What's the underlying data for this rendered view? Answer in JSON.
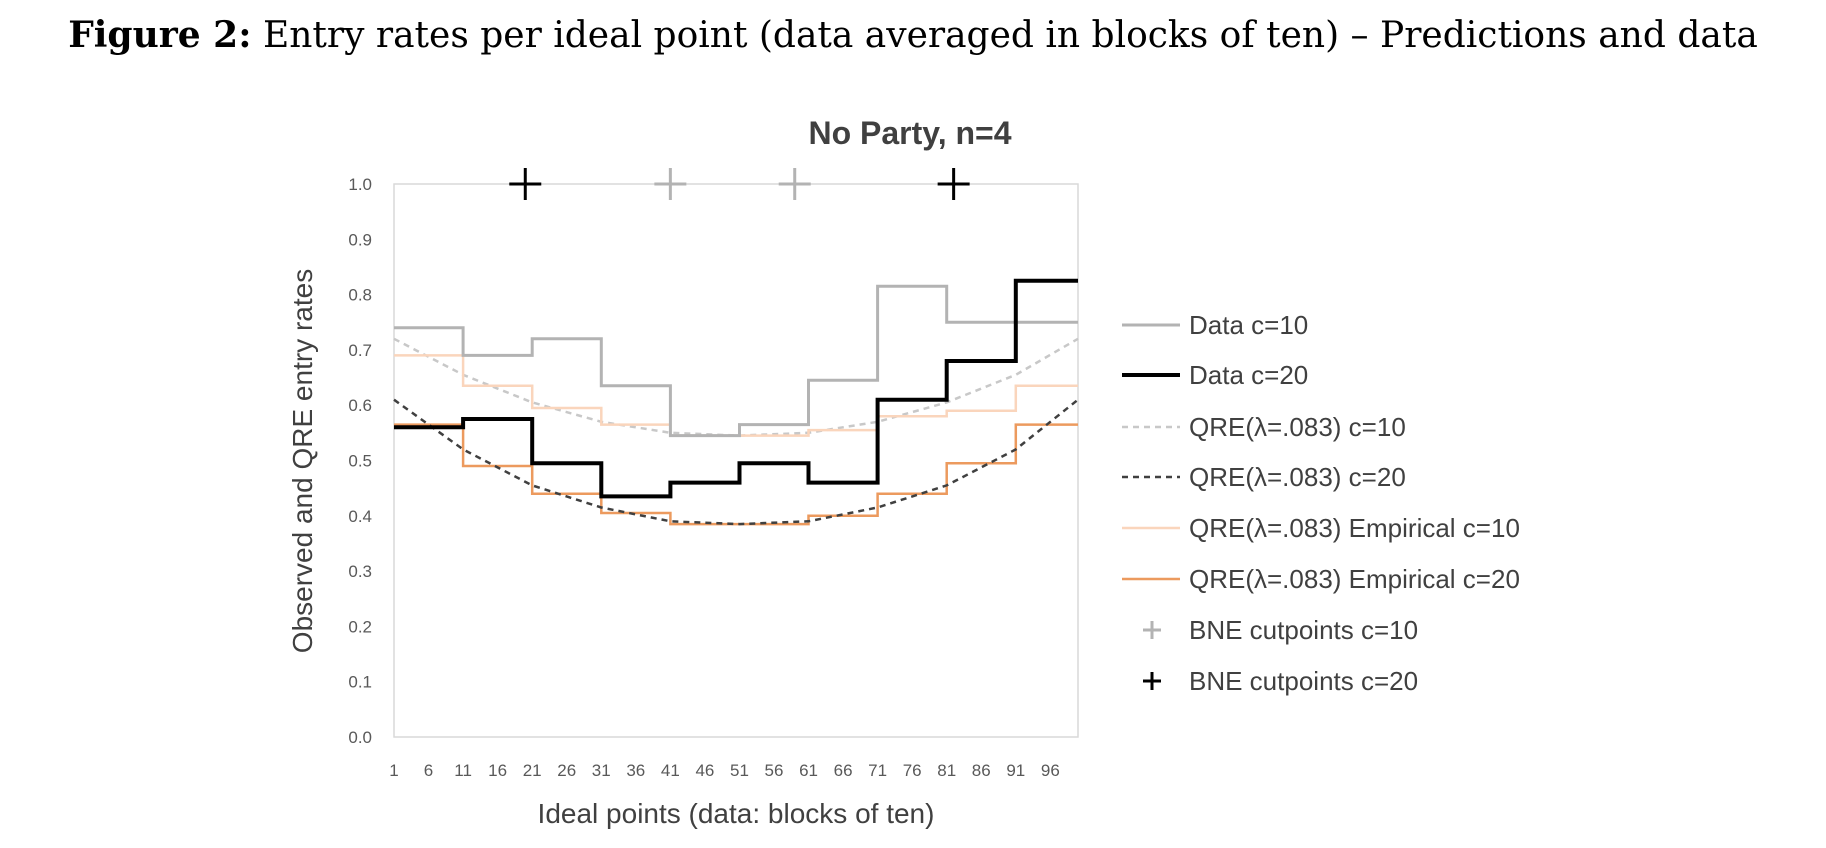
{
  "caption": {
    "label": "Figure 2:",
    "text": " Entry rates per ideal point (data averaged in blocks of ten) – Predictions and data"
  },
  "chart_data": {
    "type": "line",
    "title": "No Party, n=4",
    "xlabel": "Ideal points (data: blocks of ten)",
    "ylabel": "Observed and QRE entry rates",
    "xlim": [
      1,
      100
    ],
    "ylim": [
      0,
      1
    ],
    "y_ticks": [
      "0.0",
      "0.1",
      "0.2",
      "0.3",
      "0.4",
      "0.5",
      "0.6",
      "0.7",
      "0.8",
      "0.9",
      "1.0"
    ],
    "x_ticks": [
      "1",
      "6",
      "11",
      "16",
      "21",
      "26",
      "31",
      "36",
      "41",
      "46",
      "51",
      "56",
      "61",
      "66",
      "71",
      "76",
      "81",
      "86",
      "91",
      "96"
    ],
    "grid": false,
    "legend_position": "right",
    "series": [
      {
        "name": "Data c=10",
        "style": "step",
        "color": "#b3b3b3",
        "dash": "",
        "width": 3,
        "x": [
          1,
          11,
          21,
          31,
          41,
          51,
          61,
          71,
          81,
          91,
          100
        ],
        "y": [
          0.74,
          0.69,
          0.72,
          0.635,
          0.545,
          0.565,
          0.645,
          0.815,
          0.75,
          0.75,
          0.75
        ]
      },
      {
        "name": "Data c=20",
        "style": "step",
        "color": "#000000",
        "dash": "",
        "width": 4,
        "x": [
          1,
          11,
          21,
          31,
          41,
          51,
          61,
          71,
          81,
          91,
          100
        ],
        "y": [
          0.56,
          0.575,
          0.495,
          0.435,
          0.46,
          0.495,
          0.46,
          0.61,
          0.68,
          0.825,
          0.825
        ]
      },
      {
        "name": "QRE(λ=.083) c=10",
        "style": "line",
        "color": "#c8c8c8",
        "dash": "6,5",
        "width": 2.5,
        "x": [
          1,
          11,
          21,
          31,
          41,
          51,
          61,
          71,
          81,
          91,
          100
        ],
        "y": [
          0.72,
          0.655,
          0.605,
          0.57,
          0.55,
          0.545,
          0.55,
          0.57,
          0.605,
          0.655,
          0.72
        ]
      },
      {
        "name": "QRE(λ=.083) c=20",
        "style": "line",
        "color": "#404040",
        "dash": "6,5",
        "width": 2.5,
        "x": [
          1,
          11,
          21,
          31,
          41,
          51,
          61,
          71,
          81,
          91,
          100
        ],
        "y": [
          0.61,
          0.52,
          0.455,
          0.415,
          0.39,
          0.385,
          0.39,
          0.415,
          0.455,
          0.52,
          0.61
        ]
      },
      {
        "name": "QRE(λ=.083) Empirical c=10",
        "style": "step",
        "color": "#fad5bc",
        "dash": "",
        "width": 2.5,
        "x": [
          1,
          11,
          21,
          31,
          41,
          51,
          61,
          71,
          81,
          91,
          100
        ],
        "y": [
          0.69,
          0.635,
          0.595,
          0.565,
          0.545,
          0.545,
          0.555,
          0.58,
          0.59,
          0.635,
          0.69
        ]
      },
      {
        "name": "QRE(λ=.083) Empirical c=20",
        "style": "step",
        "color": "#ec9a5e",
        "dash": "",
        "width": 2.5,
        "x": [
          1,
          11,
          21,
          31,
          41,
          51,
          61,
          71,
          81,
          91,
          100
        ],
        "y": [
          0.565,
          0.49,
          0.44,
          0.405,
          0.385,
          0.385,
          0.4,
          0.44,
          0.495,
          0.565,
          0.565
        ]
      },
      {
        "name": "BNE cutpoints c=10",
        "style": "marker",
        "color": "#b3b3b3",
        "x": [
          41,
          59
        ],
        "y": [
          1.0,
          1.0
        ]
      },
      {
        "name": "BNE cutpoints c=20",
        "style": "marker",
        "color": "#000000",
        "x": [
          20,
          82
        ],
        "y": [
          1.0,
          1.0
        ]
      }
    ]
  }
}
